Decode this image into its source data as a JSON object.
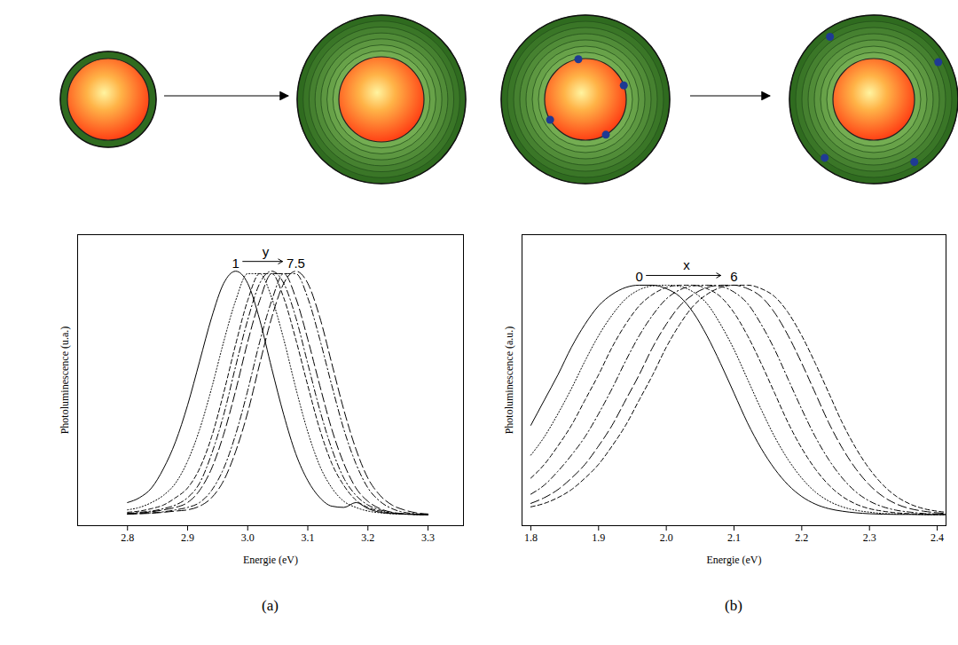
{
  "chart_data": [
    {
      "type": "line",
      "title": "(a)",
      "xlabel": "Energie (eV)",
      "ylabel": "Photoluminescence (u.a.)",
      "x": [
        2.8,
        2.82,
        2.84,
        2.86,
        2.88,
        2.9,
        2.92,
        2.94,
        2.96,
        2.98,
        3,
        3.02,
        3.04,
        3.06,
        3.08,
        3.1,
        3.12,
        3.14,
        3.16,
        3.18,
        3.2,
        3.22,
        3.24,
        3.26,
        3.28,
        3.3
      ],
      "xlim": [
        2.717,
        3.359
      ],
      "xticks": [
        2.8,
        2.9,
        {
          "value": 3,
          "label": "3.0"
        },
        3.1,
        3.2,
        3.3
      ],
      "ylim": [
        -0.045,
        1.15
      ],
      "tick_labels": "x",
      "annotation": {
        "from": "1",
        "variable": "y",
        "to": "7.5"
      },
      "series": [
        {
          "color": "#000000",
          "line_style": "solid",
          "values": [
            0.05,
            0.07,
            0.11,
            0.19,
            0.3,
            0.45,
            0.63,
            0.81,
            0.95,
            1.0,
            0.95,
            0.8,
            0.6,
            0.41,
            0.25,
            0.14,
            0.07,
            0.035,
            0.03,
            0.05,
            0.025,
            0.01,
            0.005,
            0.003,
            0.001,
            0
          ]
        },
        {
          "color": "#000000",
          "line_style": "dotted",
          "values": [
            0.02,
            0.03,
            0.05,
            0.08,
            0.13,
            0.22,
            0.35,
            0.52,
            0.71,
            0.88,
            0.99,
            0.99,
            0.89,
            0.72,
            0.52,
            0.34,
            0.2,
            0.11,
            0.055,
            0.03,
            0.015,
            0.008,
            0.004,
            0.002,
            0.001,
            0
          ]
        },
        {
          "color": "#000000",
          "line_style": "dashed",
          "values": [
            0.01,
            0.015,
            0.025,
            0.04,
            0.07,
            0.11,
            0.19,
            0.32,
            0.5,
            0.7,
            0.88,
            0.99,
            0.99,
            0.89,
            0.72,
            0.53,
            0.35,
            0.21,
            0.12,
            0.06,
            0.03,
            0.015,
            0.007,
            0.003,
            0.001,
            0
          ]
        },
        {
          "color": "#000000",
          "line_style": "dashdot",
          "values": [
            0.005,
            0.01,
            0.015,
            0.025,
            0.04,
            0.07,
            0.13,
            0.25,
            0.41,
            0.61,
            0.8,
            0.95,
            1.0,
            0.95,
            0.81,
            0.62,
            0.43,
            0.27,
            0.15,
            0.08,
            0.04,
            0.02,
            0.008,
            0.003,
            0.001,
            0
          ]
        },
        {
          "color": "#000000",
          "line_style": "longdash",
          "values": [
            0.004,
            0.007,
            0.012,
            0.02,
            0.03,
            0.05,
            0.1,
            0.19,
            0.33,
            0.51,
            0.71,
            0.88,
            0.99,
            0.99,
            0.89,
            0.72,
            0.53,
            0.35,
            0.21,
            0.11,
            0.055,
            0.025,
            0.01,
            0.004,
            0.002,
            0
          ]
        },
        {
          "color": "#000000",
          "line_style": "dashdot",
          "values": [
            0.003,
            0.005,
            0.008,
            0.012,
            0.02,
            0.03,
            0.05,
            0.1,
            0.19,
            0.33,
            0.51,
            0.71,
            0.88,
            0.99,
            0.99,
            0.89,
            0.72,
            0.53,
            0.35,
            0.21,
            0.11,
            0.055,
            0.025,
            0.01,
            0.004,
            0.001
          ]
        },
        {
          "color": "#000000",
          "line_style": "longdash",
          "values": [
            0.002,
            0.004,
            0.006,
            0.01,
            0.015,
            0.02,
            0.035,
            0.07,
            0.14,
            0.26,
            0.42,
            0.62,
            0.81,
            0.95,
            1.0,
            0.95,
            0.81,
            0.62,
            0.43,
            0.27,
            0.15,
            0.08,
            0.04,
            0.02,
            0.008,
            0.003
          ]
        }
      ]
    },
    {
      "type": "line",
      "title": "(b)",
      "xlabel": "Energie (eV)",
      "ylabel": "Photoluminescence (a.u.)",
      "x": [
        1.8,
        1.82,
        1.84,
        1.86,
        1.88,
        1.9,
        1.92,
        1.94,
        1.96,
        1.98,
        2,
        2.02,
        2.04,
        2.06,
        2.08,
        2.1,
        2.12,
        2.14,
        2.16,
        2.18,
        2.2,
        2.22,
        2.24,
        2.26,
        2.28,
        2.3,
        2.32,
        2.34,
        2.36,
        2.38,
        2.4,
        2.42
      ],
      "xlim": [
        1.787,
        2.413
      ],
      "xticks": [
        1.8,
        1.9,
        {
          "value": 2,
          "label": "2.0"
        },
        2.1,
        2.2,
        2.3,
        2.4
      ],
      "ylim": [
        -0.047,
        1.22
      ],
      "tick_labels": "x",
      "annotation": {
        "from": "0",
        "variable": "x",
        "to": "6"
      },
      "series": [
        {
          "color": "#000000",
          "line_style": "solid",
          "values": [
            0.39,
            0.5,
            0.61,
            0.73,
            0.83,
            0.91,
            0.96,
            0.99,
            1.0,
            1.0,
            0.985,
            0.95,
            0.88,
            0.78,
            0.66,
            0.53,
            0.4,
            0.29,
            0.2,
            0.13,
            0.08,
            0.047,
            0.027,
            0.016,
            0.009,
            0.005,
            0.003,
            0.002,
            0.002,
            0.001,
            0.001,
            0.001
          ]
        },
        {
          "color": "#000000",
          "line_style": "dotted",
          "values": [
            0.26,
            0.34,
            0.44,
            0.55,
            0.67,
            0.78,
            0.87,
            0.94,
            0.98,
            0.997,
            1.0,
            0.995,
            0.97,
            0.92,
            0.83,
            0.72,
            0.59,
            0.46,
            0.34,
            0.24,
            0.16,
            0.1,
            0.06,
            0.035,
            0.02,
            0.012,
            0.006,
            0.004,
            0.003,
            0.002,
            0.001,
            0.001
          ]
        },
        {
          "color": "#000000",
          "line_style": "dashed",
          "values": [
            0.16,
            0.22,
            0.3,
            0.39,
            0.5,
            0.61,
            0.73,
            0.83,
            0.91,
            0.96,
            0.99,
            1.0,
            1.0,
            0.985,
            0.95,
            0.88,
            0.78,
            0.66,
            0.53,
            0.4,
            0.29,
            0.2,
            0.13,
            0.08,
            0.047,
            0.027,
            0.016,
            0.009,
            0.005,
            0.003,
            0.002,
            0.002
          ]
        },
        {
          "color": "#000000",
          "line_style": "dashdot",
          "values": [
            0.09,
            0.13,
            0.19,
            0.26,
            0.34,
            0.44,
            0.55,
            0.67,
            0.78,
            0.87,
            0.94,
            0.98,
            0.997,
            1.0,
            0.995,
            0.97,
            0.92,
            0.83,
            0.72,
            0.59,
            0.46,
            0.34,
            0.24,
            0.16,
            0.1,
            0.06,
            0.035,
            0.02,
            0.012,
            0.006,
            0.004,
            0.003
          ]
        },
        {
          "color": "#000000",
          "line_style": "longdash",
          "values": [
            0.05,
            0.075,
            0.11,
            0.16,
            0.22,
            0.3,
            0.39,
            0.5,
            0.61,
            0.73,
            0.83,
            0.91,
            0.96,
            0.99,
            1.0,
            1.0,
            0.985,
            0.95,
            0.88,
            0.78,
            0.66,
            0.53,
            0.4,
            0.29,
            0.2,
            0.13,
            0.08,
            0.047,
            0.027,
            0.016,
            0.009,
            0.005
          ]
        },
        {
          "color": "#000000",
          "line_style": "dashed",
          "values": [
            0.035,
            0.05,
            0.075,
            0.11,
            0.16,
            0.22,
            0.3,
            0.39,
            0.5,
            0.61,
            0.73,
            0.83,
            0.91,
            0.96,
            0.99,
            1.0,
            1.0,
            0.985,
            0.95,
            0.88,
            0.78,
            0.66,
            0.53,
            0.4,
            0.29,
            0.2,
            0.13,
            0.08,
            0.047,
            0.027,
            0.016,
            0.009
          ]
        }
      ]
    }
  ]
}
